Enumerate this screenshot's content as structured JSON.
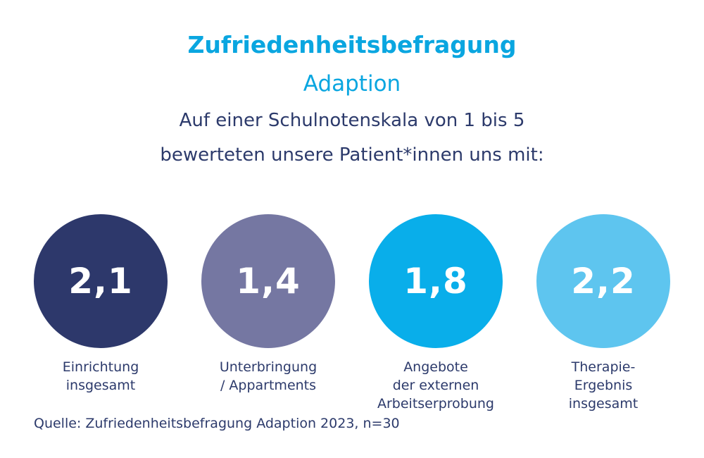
{
  "header": {
    "title": "Zufriedenheitsbefragung",
    "subtitle": "Adaption",
    "intro_line1": "Auf einer Schulnotenskala von 1 bis 5",
    "intro_line2": "bewerteten unsere Patient*innen uns mit:"
  },
  "ratings": [
    {
      "value": "2,1",
      "label_lines": [
        "Einrichtung",
        "insgesamt"
      ],
      "color": "#2d386b"
    },
    {
      "value": "1,4",
      "label_lines": [
        "Unterbringung",
        "/ Appartments"
      ],
      "color": "#7577a2"
    },
    {
      "value": "1,8",
      "label_lines": [
        "Angebote",
        "der externen",
        "Arbeitserprobung"
      ],
      "color": "#09aeea"
    },
    {
      "value": "2,2",
      "label_lines": [
        "Therapie-",
        "Ergebnis",
        "insgesamt"
      ],
      "color": "#5ec5ef"
    }
  ],
  "source": "Quelle: Zufriedenheitsbefragung Adaption 2023, n=30"
}
